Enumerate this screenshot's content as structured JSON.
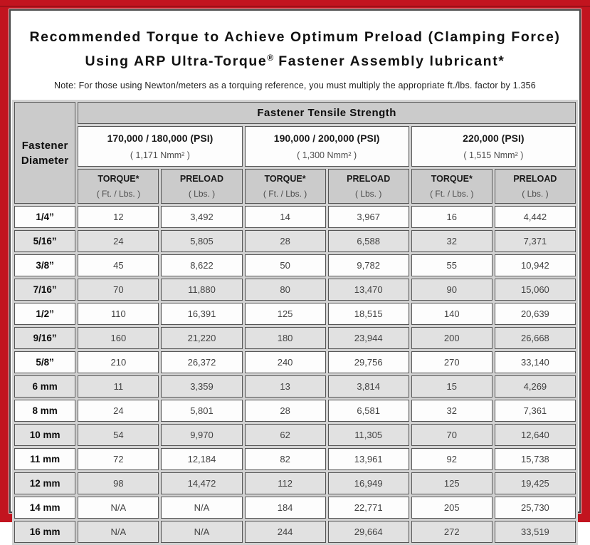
{
  "colors": {
    "frame_red": "#c2141f",
    "frame_red_dark_line": "#9e1019",
    "content_border_gray": "#474747",
    "header_gray": "#cbcbcb",
    "alt_row_gray": "#e1e1e1",
    "cell_border_gray": "#565656"
  },
  "title": {
    "line1": "Recommended Torque to Achieve Optimum Preload (Clamping Force)",
    "line2_pre": "Using ARP Ultra-Torque",
    "line2_reg": "®",
    "line2_post": " Fastener Assembly lubricant*",
    "note": "Note: For those using Newton/meters as a torquing reference, you must multiply the appropriate ft./lbs. factor by 1.356"
  },
  "table": {
    "corner_header": "Fastener Diameter",
    "main_header": "Fastener Tensile Strength",
    "groups": [
      {
        "psi": "170,000 / 180,000 (PSI)",
        "nmm": "( 1,171 Nmm² )"
      },
      {
        "psi": "190,000 / 200,000 (PSI)",
        "nmm": "( 1,300 Nmm² )"
      },
      {
        "psi": "220,000 (PSI)",
        "nmm": "( 1,515 Nmm² )"
      }
    ],
    "sub_headers": {
      "torque": "TORQUE*",
      "torque_unit": "( Ft. / Lbs. )",
      "preload": "PRELOAD",
      "preload_unit": "( Lbs. )"
    },
    "rows": [
      {
        "diameter": "1/4”",
        "values": [
          "12",
          "3,492",
          "14",
          "3,967",
          "16",
          "4,442"
        ]
      },
      {
        "diameter": "5/16”",
        "values": [
          "24",
          "5,805",
          "28",
          "6,588",
          "32",
          "7,371"
        ]
      },
      {
        "diameter": "3/8”",
        "values": [
          "45",
          "8,622",
          "50",
          "9,782",
          "55",
          "10,942"
        ]
      },
      {
        "diameter": "7/16”",
        "values": [
          "70",
          "11,880",
          "80",
          "13,470",
          "90",
          "15,060"
        ]
      },
      {
        "diameter": "1/2”",
        "values": [
          "110",
          "16,391",
          "125",
          "18,515",
          "140",
          "20,639"
        ]
      },
      {
        "diameter": "9/16”",
        "values": [
          "160",
          "21,220",
          "180",
          "23,944",
          "200",
          "26,668"
        ]
      },
      {
        "diameter": "5/8”",
        "values": [
          "210",
          "26,372",
          "240",
          "29,756",
          "270",
          "33,140"
        ]
      },
      {
        "diameter": "6 mm",
        "values": [
          "11",
          "3,359",
          "13",
          "3,814",
          "15",
          "4,269"
        ]
      },
      {
        "diameter": "8 mm",
        "values": [
          "24",
          "5,801",
          "28",
          "6,581",
          "32",
          "7,361"
        ]
      },
      {
        "diameter": "10 mm",
        "values": [
          "54",
          "9,970",
          "62",
          "11,305",
          "70",
          "12,640"
        ]
      },
      {
        "diameter": "11 mm",
        "values": [
          "72",
          "12,184",
          "82",
          "13,961",
          "92",
          "15,738"
        ]
      },
      {
        "diameter": "12 mm",
        "values": [
          "98",
          "14,472",
          "112",
          "16,949",
          "125",
          "19,425"
        ]
      },
      {
        "diameter": "14 mm",
        "values": [
          "N/A",
          "N/A",
          "184",
          "22,771",
          "205",
          "25,730"
        ]
      },
      {
        "diameter": "16 mm",
        "values": [
          "N/A",
          "N/A",
          "244",
          "29,664",
          "272",
          "33,519"
        ]
      }
    ]
  }
}
